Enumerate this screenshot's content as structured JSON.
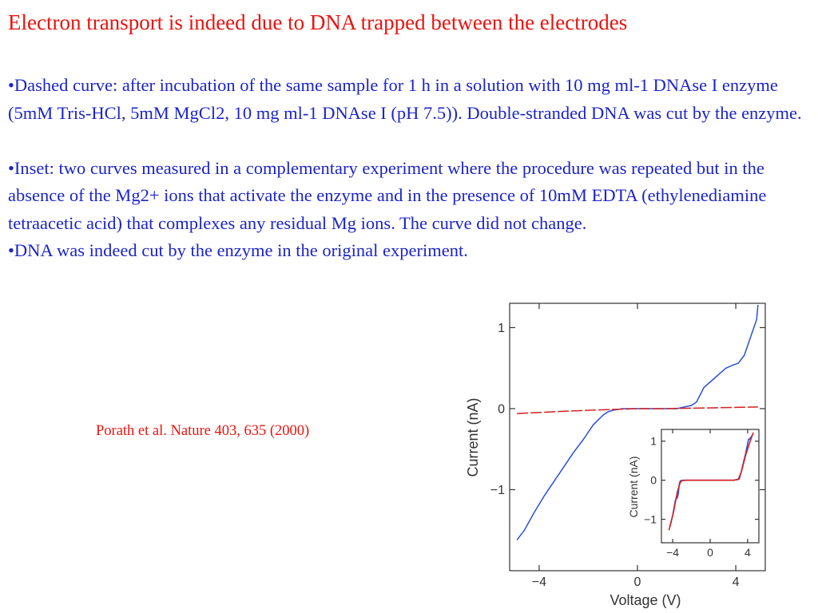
{
  "slide": {
    "title": "Electron transport is indeed due to DNA trapped between the electrodes",
    "bullets": [
      "•Dashed curve: after incubation of the same sample for 1 h in a solution with 10 mg ml-1 DNAse I enzyme (5mM Tris-HCl, 5mM MgCl2, 10 mg ml-1 DNAse I (pH 7.5)). Double-stranded DNA was cut by the enzyme.",
      "•Inset: two curves measured in a complementary experiment where the procedure was repeated but in the absence of the Mg2+ ions that activate the enzyme and in the presence of 10mM EDTA (ethylenediamine tetraacetic acid) that complexes any residual Mg ions. The curve did not change.",
      "•DNA was indeed cut by the enzyme in the original experiment."
    ],
    "citation": "Porath et al. Nature 403, 635 (2000)"
  },
  "colors": {
    "title": "#e8140f",
    "body": "#1c24c8",
    "citation": "#e8140f",
    "series_before": "#2a4fd8",
    "series_after": "#d42020",
    "axis": "#333333"
  },
  "chart_data": [
    {
      "type": "line",
      "xlabel": "Voltage (V)",
      "ylabel": "Current (nA)",
      "xlim": [
        -5.2,
        5.2
      ],
      "ylim": [
        -2.0,
        1.3
      ],
      "xticks": [
        -4,
        0,
        4
      ],
      "xtick_labels": [
        "−4",
        "0",
        "4"
      ],
      "yticks": [
        -1,
        0,
        1
      ],
      "ytick_labels": [
        "−1",
        "0",
        "1"
      ],
      "grid": false,
      "series": [
        {
          "style": "solid",
          "color": "#2a4fd8",
          "x": [
            -4.9,
            -4.6,
            -4.2,
            -3.8,
            -3.4,
            -3.0,
            -2.6,
            -2.2,
            -1.8,
            -1.4,
            -1.2,
            -1.0,
            -0.6,
            0,
            0.8,
            1.6,
            2.2,
            2.4,
            2.7,
            3.0,
            3.3,
            3.6,
            3.9,
            4.1,
            4.35,
            4.6,
            4.85,
            4.9
          ],
          "y": [
            -1.62,
            -1.5,
            -1.28,
            -1.08,
            -0.9,
            -0.72,
            -0.54,
            -0.38,
            -0.2,
            -0.08,
            -0.04,
            -0.02,
            0,
            0,
            0,
            0,
            0.04,
            0.08,
            0.26,
            0.34,
            0.42,
            0.5,
            0.54,
            0.56,
            0.66,
            0.88,
            1.1,
            1.28
          ]
        },
        {
          "style": "dashed",
          "color": "#d42020",
          "x": [
            -4.9,
            -3.5,
            -2.0,
            -1.0,
            0,
            1.0,
            2.0,
            3.0,
            4.0,
            4.9
          ],
          "y": [
            -0.06,
            -0.04,
            -0.02,
            -0.01,
            0,
            0,
            0.005,
            0.01,
            0.015,
            0.02
          ]
        }
      ]
    },
    {
      "type": "line",
      "inset": true,
      "xlabel": "",
      "ylabel": "Current (nA)",
      "xlim": [
        -5.2,
        5.2
      ],
      "ylim": [
        -1.6,
        1.3
      ],
      "xticks": [
        -4,
        0,
        4
      ],
      "xtick_labels": [
        "−4",
        "0",
        "4"
      ],
      "yticks": [
        -1,
        0,
        1
      ],
      "ytick_labels": [
        "−1",
        "0",
        "1"
      ],
      "grid": false,
      "series": [
        {
          "style": "solid",
          "color": "#2a4fd8",
          "x": [
            -4.3,
            -4.0,
            -3.7,
            -3.5,
            -3.4,
            -3.3,
            -3.2,
            -3.0,
            -2.6,
            0,
            2.5,
            3.0,
            3.3,
            3.6,
            3.8,
            4.1,
            4.2,
            4.5
          ],
          "y": [
            -1.2,
            -0.9,
            -0.5,
            -0.45,
            -0.35,
            -0.1,
            -0.02,
            0,
            0,
            0,
            0,
            0.02,
            0.2,
            0.5,
            0.7,
            1.05,
            1.05,
            1.15
          ]
        },
        {
          "style": "solid",
          "color": "#d42020",
          "x": [
            -4.4,
            -3.9,
            -3.5,
            -3.2,
            -3.0,
            -2.5,
            0,
            2.5,
            3.1,
            3.4,
            3.8,
            4.2,
            4.6
          ],
          "y": [
            -1.28,
            -0.8,
            -0.3,
            -0.06,
            -0.01,
            0,
            0,
            0,
            0.03,
            0.28,
            0.65,
            0.95,
            1.22
          ]
        }
      ]
    }
  ]
}
